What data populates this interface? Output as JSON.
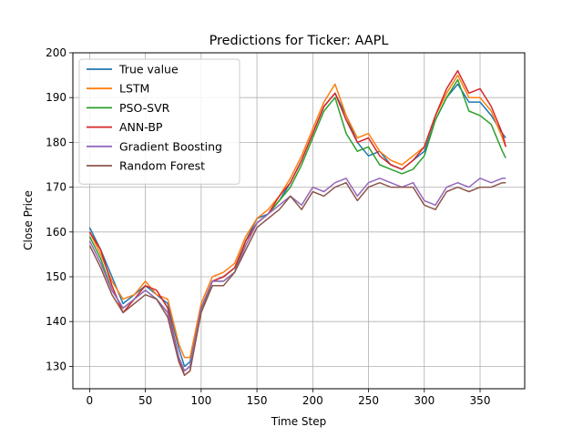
{
  "chart_data": {
    "type": "line",
    "title": "Predictions for Ticker: AAPL",
    "xlabel": "Time Step",
    "ylabel": "Close Price",
    "xlim": [
      -15,
      390
    ],
    "ylim": [
      125,
      200
    ],
    "xticks": [
      0,
      50,
      100,
      150,
      200,
      250,
      300,
      350
    ],
    "yticks": [
      130,
      140,
      150,
      160,
      170,
      180,
      190,
      200
    ],
    "grid": true,
    "legend_position": "top-left",
    "series": [
      {
        "name": "True value",
        "color": "#1f77b4",
        "x": [
          0,
          10,
          20,
          30,
          40,
          50,
          60,
          70,
          80,
          85,
          90,
          100,
          110,
          120,
          130,
          140,
          150,
          160,
          170,
          180,
          190,
          200,
          210,
          220,
          230,
          240,
          250,
          260,
          270,
          280,
          290,
          300,
          310,
          320,
          330,
          340,
          350,
          360,
          370,
          373
        ],
        "y": [
          161,
          156,
          150,
          144,
          146,
          148,
          146,
          144,
          134,
          130,
          131,
          143,
          149,
          150,
          152,
          158,
          163,
          164,
          167,
          171,
          176,
          182,
          188,
          191,
          186,
          180,
          177,
          178,
          175,
          174,
          176,
          178,
          185,
          190,
          193,
          189,
          189,
          186,
          182,
          181
        ]
      },
      {
        "name": "LSTM",
        "color": "#ff7f0e",
        "x": [
          0,
          10,
          20,
          30,
          40,
          50,
          60,
          70,
          80,
          85,
          90,
          100,
          110,
          120,
          130,
          140,
          150,
          160,
          170,
          180,
          190,
          200,
          210,
          220,
          230,
          240,
          250,
          260,
          270,
          280,
          290,
          300,
          310,
          320,
          330,
          340,
          350,
          360,
          370,
          373
        ],
        "y": [
          160,
          155,
          149,
          145,
          146,
          149,
          146,
          145,
          135,
          132,
          132,
          144,
          150,
          151,
          153,
          159,
          163,
          165,
          168,
          172,
          177,
          183,
          189,
          193,
          186,
          181,
          182,
          178,
          176,
          175,
          177,
          179,
          186,
          191,
          195,
          190,
          190,
          187,
          181,
          179
        ]
      },
      {
        "name": "PSO-SVR",
        "color": "#2ca02c",
        "x": [
          0,
          10,
          20,
          30,
          40,
          50,
          60,
          70,
          80,
          85,
          90,
          100,
          110,
          120,
          130,
          140,
          150,
          160,
          170,
          180,
          190,
          200,
          210,
          220,
          230,
          240,
          250,
          260,
          270,
          280,
          290,
          300,
          310,
          320,
          330,
          340,
          350,
          360,
          370,
          373
        ],
        "y": [
          159,
          154,
          147,
          143,
          145,
          147,
          145,
          142,
          132,
          129,
          130,
          142,
          149,
          149,
          151,
          158,
          162,
          164,
          167,
          170,
          175,
          181,
          187,
          190,
          182,
          178,
          179,
          175,
          174,
          173,
          174,
          177,
          185,
          190,
          194,
          187,
          186,
          184,
          178,
          176.5
        ]
      },
      {
        "name": "ANN-BP",
        "color": "#d62728",
        "x": [
          0,
          10,
          20,
          30,
          40,
          50,
          60,
          70,
          80,
          85,
          90,
          100,
          110,
          120,
          130,
          140,
          150,
          160,
          170,
          180,
          190,
          200,
          210,
          220,
          230,
          240,
          250,
          260,
          270,
          280,
          290,
          300,
          310,
          320,
          330,
          340,
          350,
          360,
          370,
          373
        ],
        "y": [
          160,
          156,
          148,
          142,
          145,
          148,
          147,
          143,
          132,
          128,
          129,
          143,
          149,
          150,
          152,
          158,
          162,
          164,
          168,
          171,
          176,
          182,
          188,
          191,
          185,
          180,
          181,
          177,
          175,
          174,
          176,
          179,
          186,
          192,
          196,
          191,
          192,
          188,
          182,
          179
        ]
      },
      {
        "name": "Gradient Boosting",
        "color": "#9467bd",
        "x": [
          0,
          10,
          20,
          30,
          40,
          50,
          60,
          70,
          80,
          85,
          90,
          100,
          110,
          120,
          130,
          140,
          150,
          160,
          170,
          180,
          190,
          200,
          210,
          220,
          230,
          240,
          250,
          260,
          270,
          280,
          290,
          300,
          310,
          320,
          330,
          340,
          350,
          360,
          370,
          373
        ],
        "y": [
          158,
          153,
          147,
          143,
          145,
          147,
          145,
          142,
          132,
          129,
          130,
          143,
          149,
          149,
          151,
          157,
          162,
          164,
          166,
          168,
          166,
          170,
          169,
          171,
          172,
          168,
          171,
          172,
          171,
          170,
          171,
          167,
          166,
          170,
          171,
          170,
          172,
          171,
          172,
          172
        ]
      },
      {
        "name": "Random Forest",
        "color": "#8c564b",
        "x": [
          0,
          10,
          20,
          30,
          40,
          50,
          60,
          70,
          80,
          85,
          90,
          100,
          110,
          120,
          130,
          140,
          150,
          160,
          170,
          180,
          190,
          200,
          210,
          220,
          230,
          240,
          250,
          260,
          270,
          280,
          290,
          300,
          310,
          320,
          330,
          340,
          350,
          360,
          370,
          373
        ],
        "y": [
          157,
          152,
          146,
          142,
          144,
          146,
          145,
          141,
          131,
          128,
          129,
          142,
          148,
          148,
          151,
          156,
          161,
          163,
          165,
          168,
          165,
          169,
          168,
          170,
          171,
          167,
          170,
          171,
          170,
          170,
          170,
          166,
          165,
          169,
          170,
          169,
          170,
          170,
          171,
          171
        ]
      }
    ]
  }
}
